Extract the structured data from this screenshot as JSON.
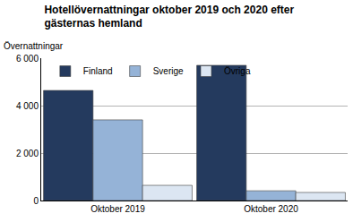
{
  "chart_data": {
    "type": "bar",
    "title": "Hotellövernattningar oktober 2019 och 2020 efter\ngästernas hemland",
    "y_label": "Övernattningar",
    "categories": [
      "Oktober 2019",
      "Oktober 2020"
    ],
    "series": [
      {
        "name": "Finland",
        "color": "#243a5e",
        "values": [
          4640,
          5700
        ]
      },
      {
        "name": "Sverige",
        "color": "#95b3d7",
        "values": [
          3400,
          410
        ]
      },
      {
        "name": "Övriga",
        "color": "#dce6f2",
        "values": [
          640,
          340
        ]
      }
    ],
    "ylim": [
      0,
      6000
    ],
    "yticks": [
      {
        "value": 0,
        "label": "0"
      },
      {
        "value": 2000,
        "label": "2 000"
      },
      {
        "value": 4000,
        "label": "4 000"
      },
      {
        "value": 6000,
        "label": "6 000"
      }
    ],
    "grid": true,
    "legend": "top left"
  }
}
